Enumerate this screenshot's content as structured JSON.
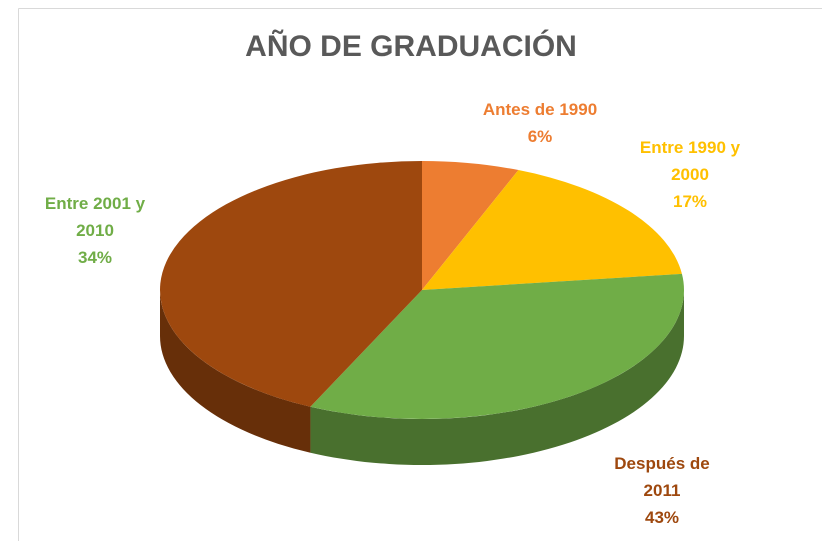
{
  "chart_data": {
    "type": "pie",
    "title": "AÑO DE GRADUACIÓN",
    "categories": [
      "Antes de 1990",
      "Entre 1990 y 2000",
      "Entre 2001 y 2010",
      "Después de 2011"
    ],
    "values": [
      6,
      17,
      34,
      43
    ],
    "value_labels": [
      "6%",
      "17%",
      "34%",
      "43%"
    ],
    "colors": [
      "#ED7D31",
      "#FFC000",
      "#70AD47",
      "#9E480E"
    ]
  }
}
